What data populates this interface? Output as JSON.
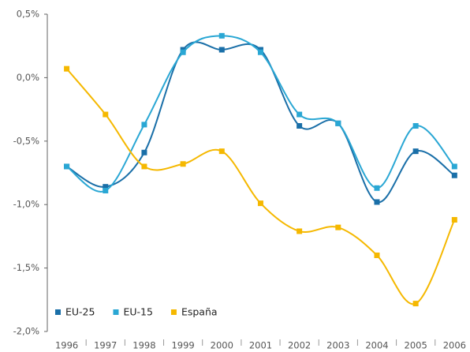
{
  "chart_data": {
    "type": "line",
    "x": [
      1996,
      1997,
      1998,
      1999,
      2000,
      2001,
      2002,
      2003,
      2004,
      2005,
      2006
    ],
    "series": [
      {
        "name": "EU-25",
        "color": "#1a6fa8",
        "values": [
          -0.7,
          -0.86,
          -0.59,
          0.22,
          0.22,
          0.22,
          -0.38,
          -0.36,
          -0.98,
          -0.58,
          -0.77
        ]
      },
      {
        "name": "EU-15",
        "color": "#2aa7d4",
        "values": [
          -0.7,
          -0.89,
          -0.37,
          0.2,
          0.33,
          0.2,
          -0.29,
          -0.36,
          -0.87,
          -0.38,
          -0.7
        ]
      },
      {
        "name": "España",
        "color": "#f5b800",
        "values": [
          0.07,
          -0.29,
          -0.7,
          -0.68,
          -0.58,
          -0.99,
          -1.21,
          -1.18,
          -1.4,
          -1.78,
          -1.12
        ]
      }
    ],
    "xlim": [
      1995.5,
      2006.4
    ],
    "xticks": [
      1996,
      1997,
      1998,
      1999,
      2000,
      2001,
      2002,
      2003,
      2004,
      2005,
      2006
    ],
    "ylim": [
      -2.0,
      0.5
    ],
    "yticks": [
      {
        "value": -2.0,
        "label": "-2,0%"
      },
      {
        "value": -1.5,
        "label": "-1,5%"
      },
      {
        "value": -1.0,
        "label": "-1,0%"
      },
      {
        "value": -0.5,
        "label": "-0,5%"
      },
      {
        "value": 0.0,
        "label": "0,0%"
      },
      {
        "value": 0.5,
        "label": "0,5%"
      }
    ],
    "legend": "lower left"
  }
}
